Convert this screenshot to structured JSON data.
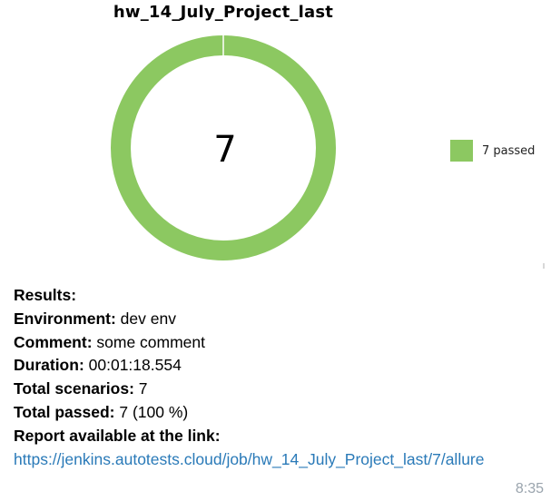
{
  "chart_data": {
    "type": "pie",
    "title": "hw_14_July_Project_last",
    "center_label": "7",
    "slices": [
      {
        "label": "7 passed",
        "value": 7,
        "color": "#8cc861"
      }
    ],
    "legend_position": "right"
  },
  "message": {
    "results_label": "Results:",
    "environment_label": "Environment:",
    "environment_value": " dev env",
    "comment_label": "Comment:",
    "comment_value": " some comment",
    "duration_label": "Duration:",
    "duration_value": " 00:01:18.554",
    "total_scenarios_label": "Total scenarios:",
    "total_scenarios_value": " 7",
    "total_passed_label": "Total passed:",
    "total_passed_value": " 7 (100 %)",
    "report_label": "Report available at the link:",
    "report_link": "https://jenkins.autotests.cloud/job/hw_14_July_Project_last/7/allure",
    "time": "8:35"
  }
}
